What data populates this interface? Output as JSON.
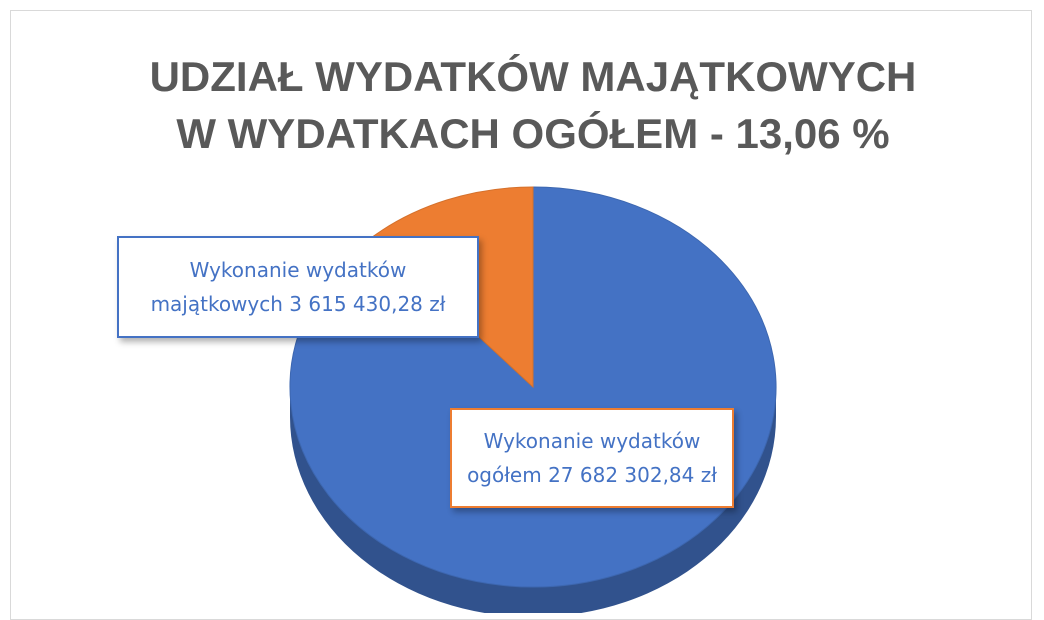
{
  "chart_data": {
    "type": "pie",
    "title": "UDZIAŁ WYDATKÓW MAJĄTKOWYCH W WYDATKACH OGÓŁEM - 13,06 %",
    "categories": [
      "Wykonanie wydatków majątkowych",
      "Wykonanie wydatków ogółem"
    ],
    "values": [
      3615430.28,
      27682302.84
    ],
    "value_labels": [
      "3 615 430,28 zł",
      "27 682 302,84 zł"
    ],
    "colors": [
      "#ed7d31",
      "#4472c4"
    ]
  }
}
